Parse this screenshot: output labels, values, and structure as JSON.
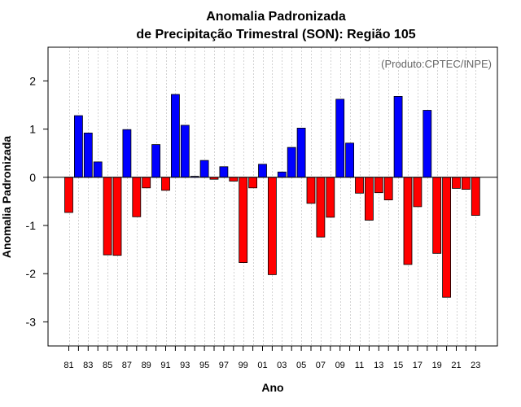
{
  "chart_data": {
    "type": "bar",
    "title": "Anomalia Padronizada",
    "subtitle": "de Precipitação Trimestral (SON): Região 105",
    "xlabel": "Ano",
    "ylabel": "Anomalia Padronizada",
    "credit": "(Produto:CPTEC/INPE)",
    "ylim": [
      -3.5,
      2.7
    ],
    "yticks": [
      "2",
      "1",
      "0",
      "-1",
      "-2",
      "-3"
    ],
    "ytick_values": [
      2,
      1,
      0,
      -1,
      -2,
      -3
    ],
    "categories": [
      "81",
      "82",
      "83",
      "84",
      "85",
      "86",
      "87",
      "88",
      "89",
      "90",
      "91",
      "92",
      "93",
      "94",
      "95",
      "96",
      "97",
      "98",
      "99",
      "00",
      "01",
      "02",
      "03",
      "04",
      "05",
      "06",
      "07",
      "08",
      "09",
      "10",
      "11",
      "12",
      "13",
      "14",
      "15",
      "16",
      "17",
      "18",
      "19",
      "20",
      "21",
      "22",
      "23"
    ],
    "tick_labels": [
      "81",
      "83",
      "85",
      "87",
      "89",
      "91",
      "93",
      "95",
      "97",
      "99",
      "01",
      "03",
      "05",
      "07",
      "09",
      "11",
      "13",
      "15",
      "17",
      "19",
      "21",
      "23"
    ],
    "values": [
      -0.73,
      1.28,
      0.92,
      0.32,
      -1.61,
      -1.62,
      0.99,
      -0.82,
      -0.22,
      0.68,
      -0.27,
      1.72,
      1.08,
      0.02,
      0.35,
      -0.04,
      0.22,
      -0.08,
      -1.77,
      -0.22,
      0.27,
      -2.02,
      0.11,
      0.62,
      1.02,
      -0.54,
      -1.24,
      -0.83,
      1.62,
      0.71,
      -0.33,
      -0.89,
      -0.32,
      -0.47,
      1.68,
      -1.81,
      -0.61,
      1.39,
      -1.58,
      -2.49,
      -0.23,
      -0.25,
      -0.79
    ],
    "colors": {
      "positive": "#0000ff",
      "negative": "#ff0000",
      "outline": "#000000",
      "grid": "#d3d3d3"
    },
    "grid": true
  }
}
